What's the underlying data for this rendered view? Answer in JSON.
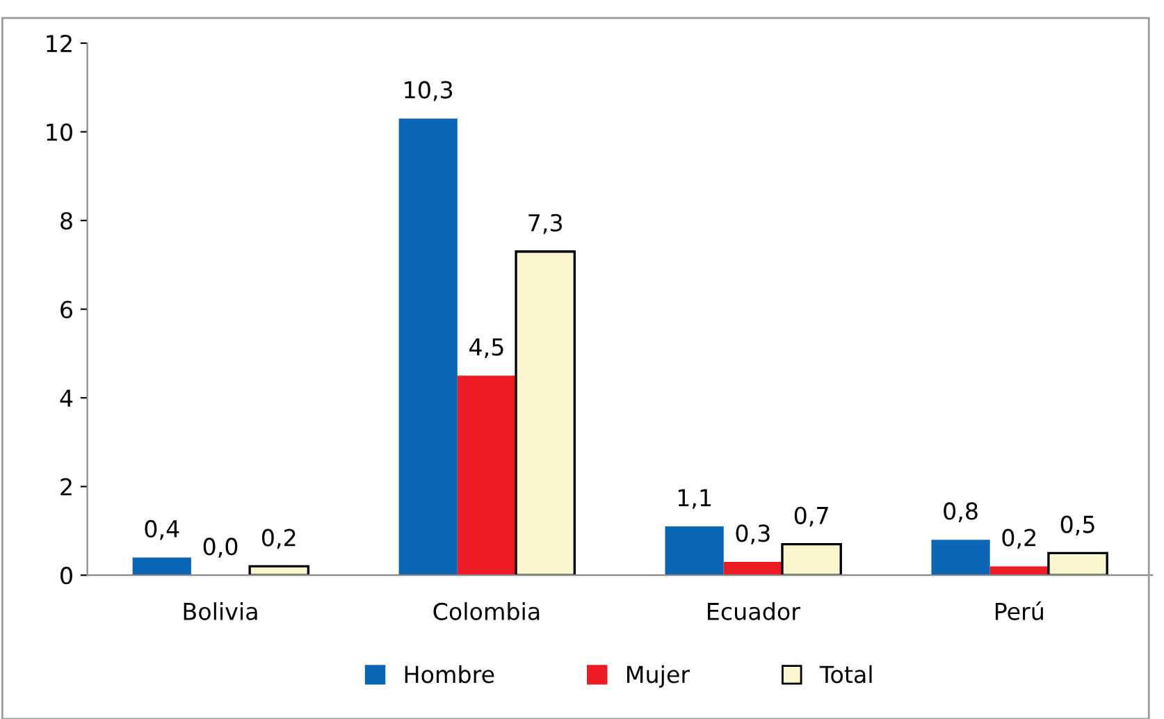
{
  "chart_data": {
    "type": "bar",
    "categories": [
      "Bolivia",
      "Colombia",
      "Ecuador",
      "Perú"
    ],
    "series": [
      {
        "name": "Hombre",
        "color": "#0b67b5",
        "values": [
          0.4,
          10.3,
          1.1,
          0.8
        ],
        "value_labels": [
          "0,4",
          "10,3",
          "1,1",
          "0,8"
        ]
      },
      {
        "name": "Mujer",
        "color": "#ed1c24",
        "values": [
          0.0,
          4.5,
          0.3,
          0.2
        ],
        "value_labels": [
          "0,0",
          "4,5",
          "0,3",
          "0,2"
        ]
      },
      {
        "name": "Total",
        "color": "#faf6cf",
        "values": [
          0.2,
          7.3,
          0.7,
          0.5
        ],
        "value_labels": [
          "0,2",
          "7,3",
          "0,7",
          "0,5"
        ]
      }
    ],
    "ylim": [
      0,
      12
    ],
    "yticks": [
      0,
      2,
      4,
      6,
      8,
      10,
      12
    ],
    "grid": false,
    "legend": "bottom"
  }
}
